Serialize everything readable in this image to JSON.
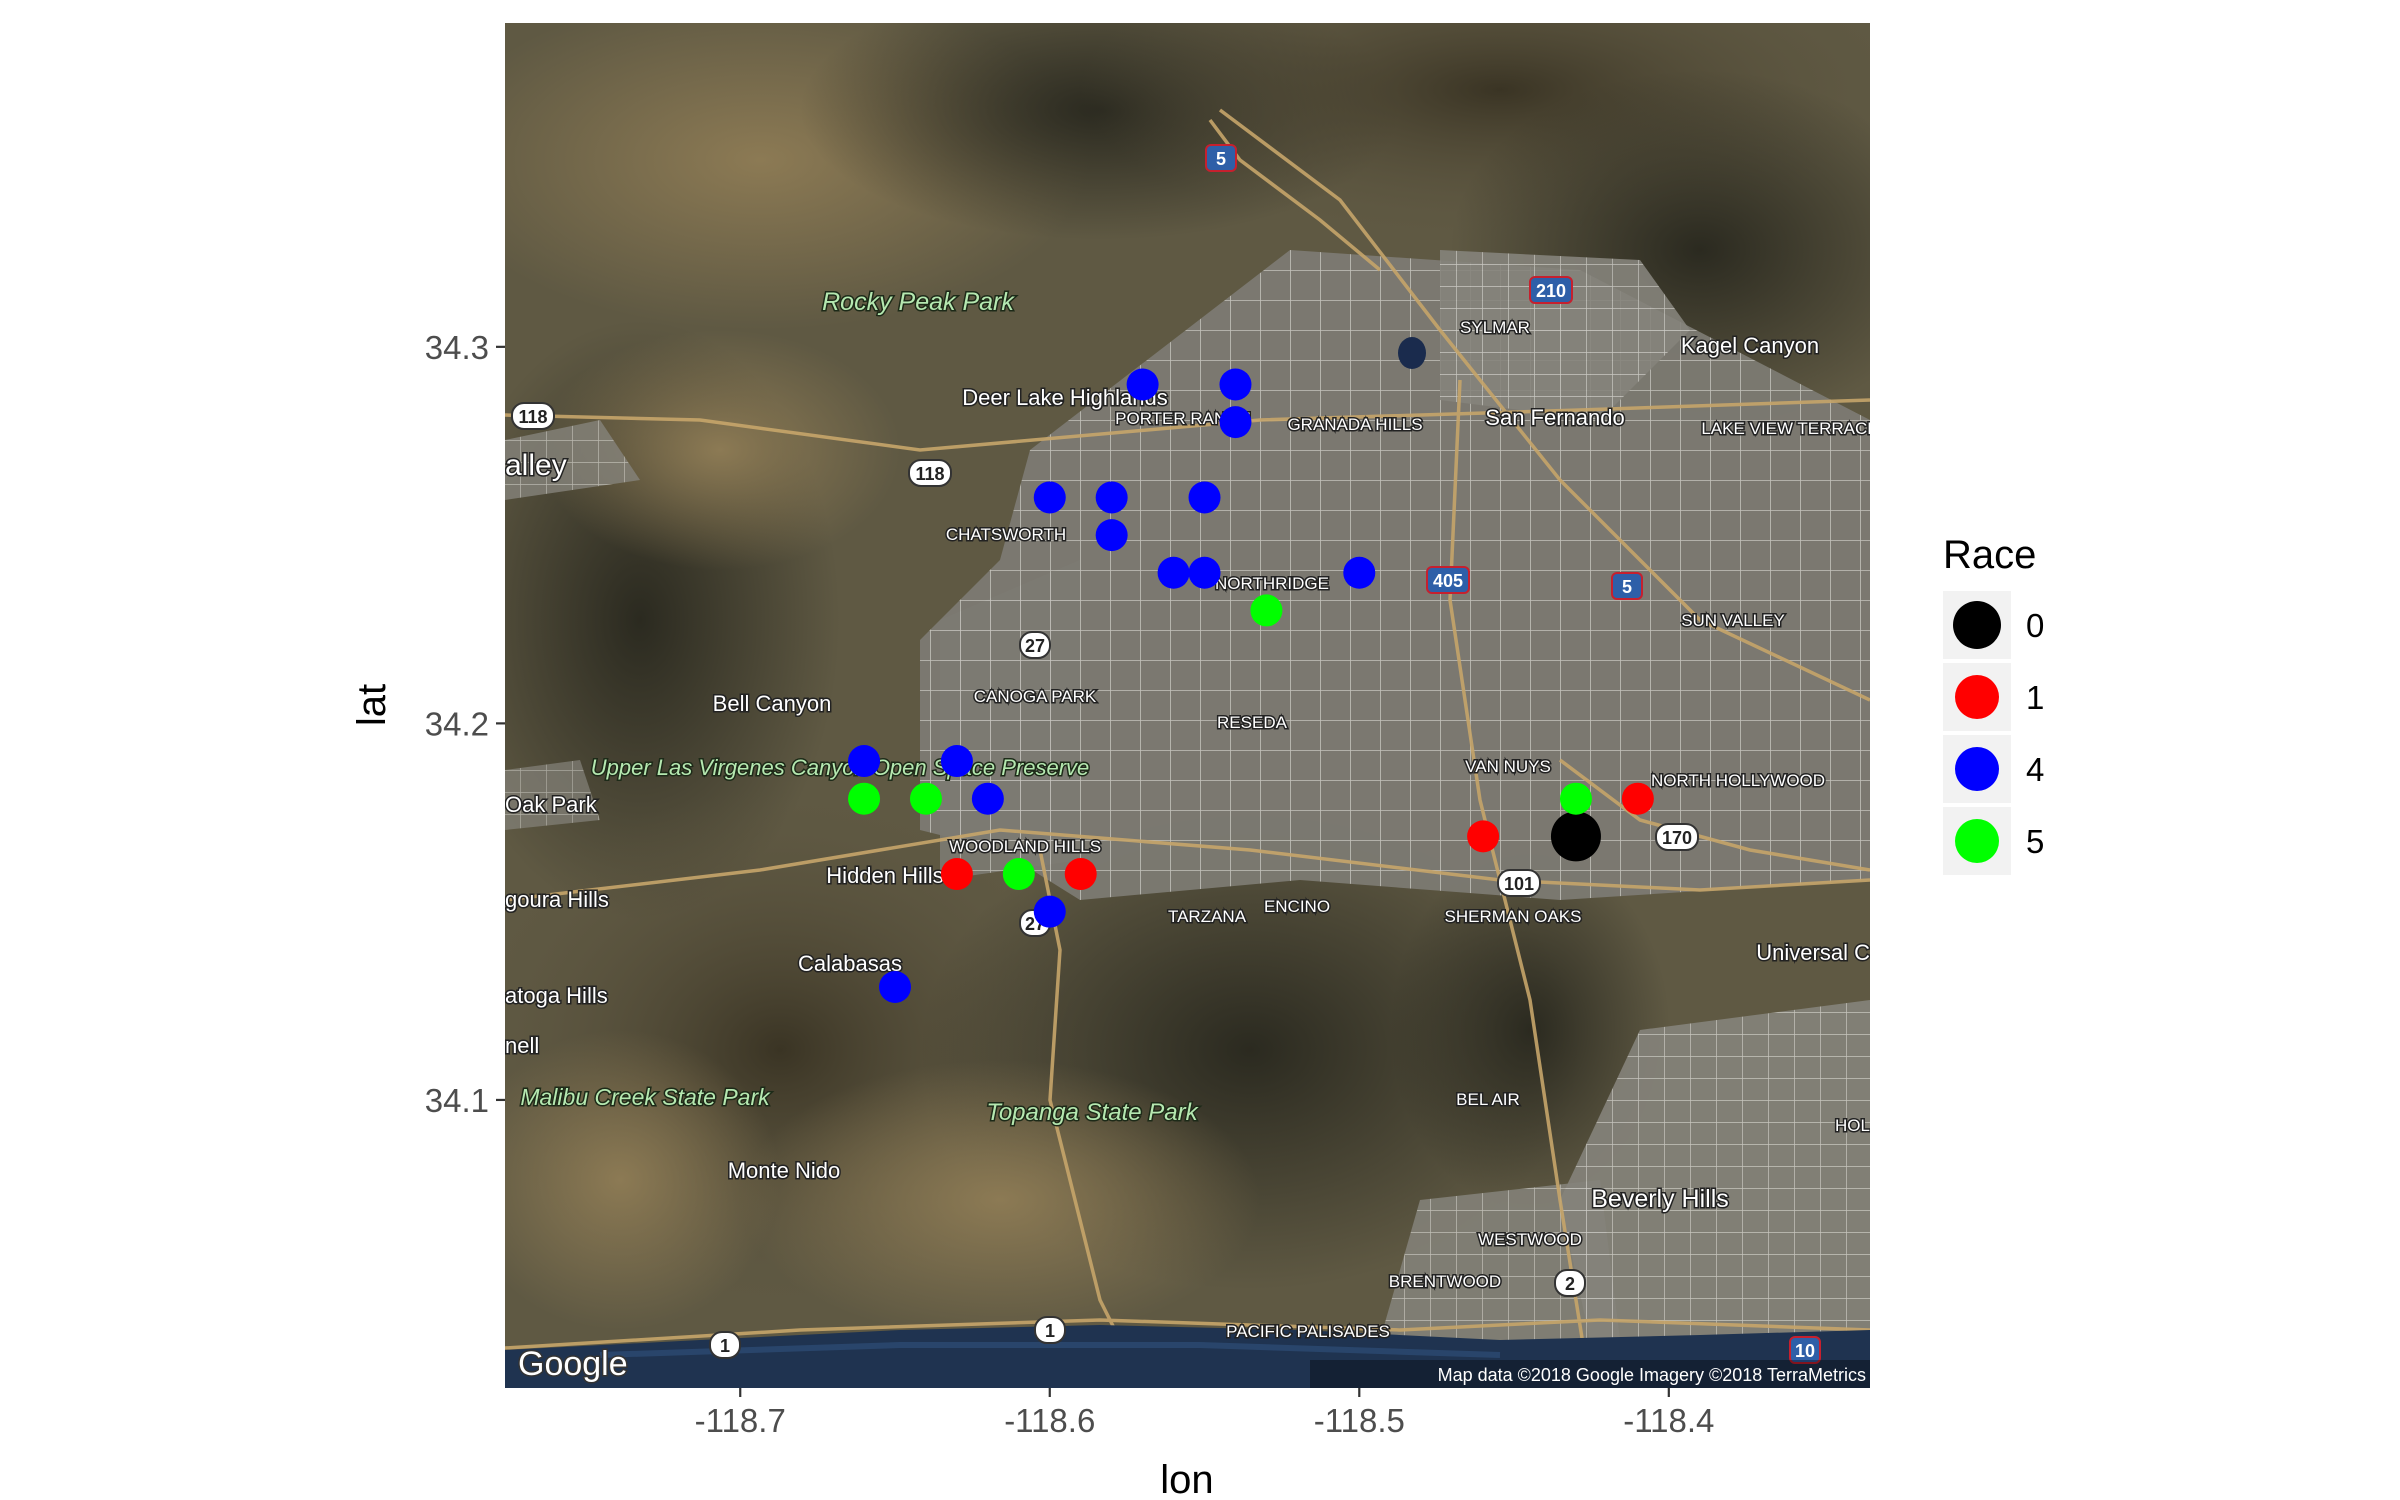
{
  "chart_data": {
    "type": "scatter",
    "xlabel": "lon",
    "ylabel": "lat",
    "xlim": [
      -118.776,
      -118.335
    ],
    "ylim": [
      34.0235,
      34.386
    ],
    "x_ticks": [
      -118.7,
      -118.6,
      -118.5,
      -118.4
    ],
    "x_tick_labels": [
      "-118.7",
      "-118.6",
      "-118.5",
      "-118.4"
    ],
    "y_ticks": [
      34.1,
      34.2,
      34.3
    ],
    "y_tick_labels": [
      "34.1",
      "34.2",
      "34.3"
    ],
    "grid": false,
    "legend": {
      "title": "Race",
      "placement": "right"
    },
    "series": [
      {
        "name": "0",
        "color": "#000000",
        "points": [
          [
            -118.43,
            34.17
          ]
        ]
      },
      {
        "name": "1",
        "color": "#ff0000",
        "points": [
          [
            -118.63,
            34.16
          ],
          [
            -118.59,
            34.16
          ],
          [
            -118.46,
            34.17
          ],
          [
            -118.41,
            34.18
          ]
        ]
      },
      {
        "name": "4",
        "color": "#0000ff",
        "points": [
          [
            -118.57,
            34.29
          ],
          [
            -118.54,
            34.29
          ],
          [
            -118.54,
            34.28
          ],
          [
            -118.6,
            34.26
          ],
          [
            -118.58,
            34.26
          ],
          [
            -118.55,
            34.26
          ],
          [
            -118.58,
            34.25
          ],
          [
            -118.56,
            34.24
          ],
          [
            -118.55,
            34.24
          ],
          [
            -118.5,
            34.24
          ],
          [
            -118.66,
            34.19
          ],
          [
            -118.63,
            34.19
          ],
          [
            -118.62,
            34.18
          ],
          [
            -118.6,
            34.15
          ],
          [
            -118.65,
            34.13
          ]
        ]
      },
      {
        "name": "5",
        "color": "#00ff00",
        "points": [
          [
            -118.53,
            34.23
          ],
          [
            -118.66,
            34.18
          ],
          [
            -118.64,
            34.18
          ],
          [
            -118.61,
            34.16
          ],
          [
            -118.43,
            34.18
          ]
        ]
      }
    ]
  },
  "map": {
    "place_labels": [
      "SYLMAR",
      "Kagel Canyon",
      "San Fernando",
      "LAKE VIEW TERRACE",
      "Deer Lake Highlands",
      "PORTER RANCH",
      "GRANADA HILLS",
      "CHATSWORTH",
      "NORTHRIDGE",
      "SUN VALLEY",
      "Bell Canyon",
      "CANOGA PARK",
      "RESEDA",
      "VAN NUYS",
      "NORTH HOLLYWOOD",
      "WOODLAND HILLS",
      "Hidden Hills",
      "TARZANA",
      "ENCINO",
      "SHERMAN OAKS",
      "Calabasas",
      "Universal C",
      "Oak Park",
      "goura Hills",
      "atoga Hills",
      "nell",
      "alley",
      "BEL AIR",
      "Monte Nido",
      "Beverly Hills",
      "WESTWOOD",
      "BRENTWOOD",
      "PACIFIC PALISADES",
      "HOL"
    ],
    "park_labels": [
      "Rocky Peak Park",
      "Upper Las Virgenes Canyon Open Space Preserve",
      "Malibu Creek State Park",
      "Topanga State Park"
    ],
    "highway_shields": [
      "5",
      "210",
      "118",
      "118",
      "405",
      "5",
      "27",
      "27",
      "170",
      "101",
      "2",
      "1",
      "1",
      "10"
    ],
    "logo": "Google",
    "attribution": "Map data ©2018 Google  Imagery ©2018 TerraMetrics"
  }
}
